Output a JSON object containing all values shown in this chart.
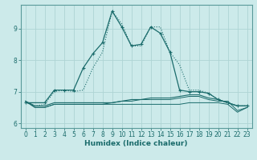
{
  "xlabel": "Humidex (Indice chaleur)",
  "bg_color": "#cceaea",
  "grid_color": "#aed4d4",
  "line_color": "#1a6b6b",
  "xlim": [
    -0.5,
    23.5
  ],
  "ylim": [
    5.85,
    9.75
  ],
  "xticks": [
    0,
    1,
    2,
    3,
    4,
    5,
    6,
    7,
    8,
    9,
    10,
    11,
    12,
    13,
    14,
    15,
    16,
    17,
    18,
    19,
    20,
    21,
    22,
    23
  ],
  "yticks": [
    6,
    7,
    8,
    9
  ],
  "line1_x": [
    0,
    1,
    2,
    3,
    4,
    5,
    6,
    7,
    8,
    9,
    10,
    11,
    12,
    13,
    14,
    15,
    16,
    17,
    18,
    19,
    20,
    21,
    22,
    23
  ],
  "line1_y": [
    6.65,
    6.55,
    6.6,
    7.0,
    7.05,
    7.0,
    7.05,
    7.75,
    8.25,
    9.55,
    9.15,
    8.45,
    8.45,
    9.05,
    9.05,
    8.25,
    7.85,
    7.05,
    7.05,
    6.95,
    6.75,
    6.65,
    6.55,
    6.55
  ],
  "line2_x": [
    0,
    2,
    3,
    4,
    5,
    6,
    7,
    8,
    9,
    10,
    11,
    12,
    13,
    14,
    15,
    16,
    17,
    18,
    19,
    20,
    21,
    22,
    23
  ],
  "line2_y": [
    6.65,
    6.65,
    7.05,
    7.05,
    7.05,
    7.75,
    8.2,
    8.55,
    9.55,
    9.05,
    8.45,
    8.5,
    9.05,
    8.85,
    8.25,
    7.05,
    7.0,
    7.0,
    6.95,
    6.75,
    6.65,
    6.55,
    6.55
  ],
  "line3_x": [
    0,
    1,
    2,
    3,
    4,
    5,
    6,
    7,
    8,
    9,
    10,
    11,
    12,
    13,
    14,
    15,
    16,
    17,
    18,
    19,
    20,
    21,
    22,
    23
  ],
  "line3_y": [
    6.7,
    6.55,
    6.55,
    6.65,
    6.65,
    6.65,
    6.65,
    6.65,
    6.65,
    6.65,
    6.7,
    6.75,
    6.75,
    6.8,
    6.8,
    6.8,
    6.85,
    6.9,
    6.9,
    6.8,
    6.75,
    6.65,
    6.55,
    6.55
  ],
  "line4_x": [
    0,
    1,
    2,
    3,
    4,
    5,
    6,
    7,
    8,
    9,
    10,
    11,
    12,
    13,
    14,
    15,
    16,
    17,
    18,
    19,
    20,
    21,
    22,
    23
  ],
  "line4_y": [
    6.7,
    6.5,
    6.5,
    6.6,
    6.6,
    6.6,
    6.6,
    6.6,
    6.6,
    6.65,
    6.7,
    6.7,
    6.75,
    6.75,
    6.75,
    6.75,
    6.8,
    6.85,
    6.85,
    6.75,
    6.7,
    6.7,
    6.4,
    6.5
  ],
  "line5_x": [
    0,
    1,
    2,
    3,
    4,
    5,
    6,
    7,
    8,
    9,
    10,
    11,
    12,
    13,
    14,
    15,
    16,
    17,
    18,
    19,
    20,
    21,
    22,
    23
  ],
  "line5_y": [
    6.7,
    6.5,
    6.5,
    6.6,
    6.6,
    6.6,
    6.6,
    6.6,
    6.6,
    6.6,
    6.6,
    6.6,
    6.6,
    6.6,
    6.6,
    6.6,
    6.6,
    6.65,
    6.65,
    6.65,
    6.65,
    6.6,
    6.35,
    6.5
  ]
}
